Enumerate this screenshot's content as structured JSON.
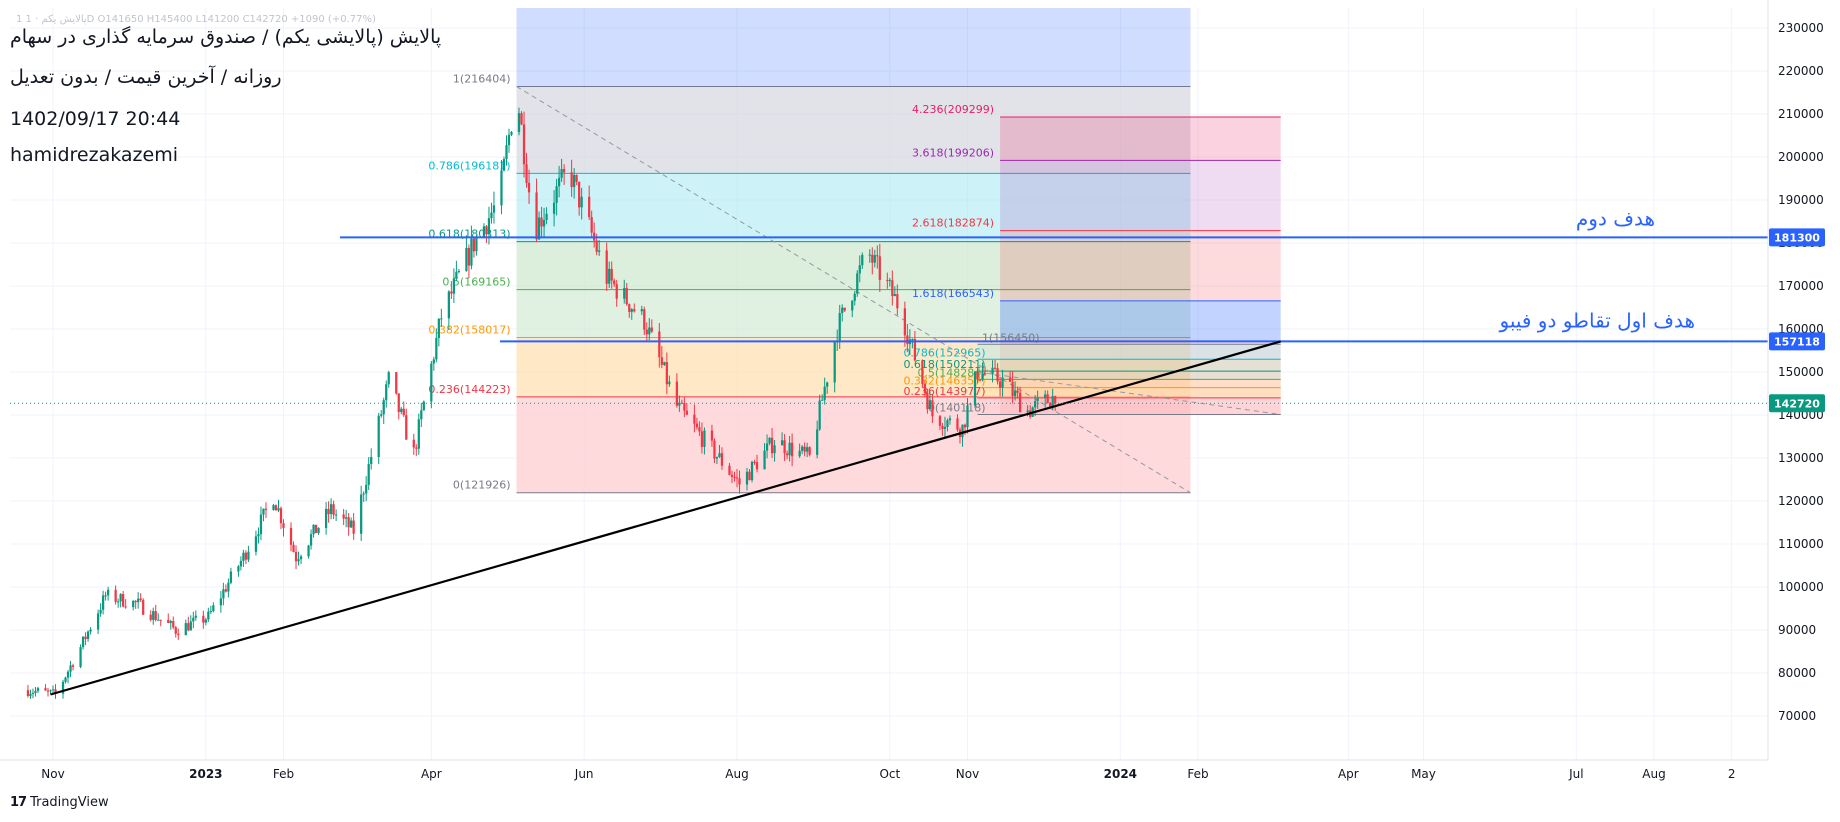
{
  "header": {
    "ohlc_text": "1 پالایش یکم · 1D  O141650  H145400  L141200  C142720  +1090 (+0.77%)",
    "title": "پالایش (پالایشی یکم) / صندوق سرمایه گذاری در سهام",
    "subtitle": "روزانه / آخرین قیمت / بدون تعدیل",
    "datetime": "1402/09/17 20:44",
    "author": "hamidrezakazemi"
  },
  "footer": {
    "logo": "17",
    "brand": "TradingView"
  },
  "colors": {
    "up": "#089981",
    "down": "#f23645",
    "accent": "#2962ff"
  },
  "chart_data": {
    "type": "candlestick",
    "x_labels": [
      "Nov",
      "2023",
      "Feb",
      "Apr",
      "Jun",
      "Aug",
      "Oct",
      "Nov",
      "2024",
      "Feb",
      "Apr",
      "May",
      "Jul",
      "Aug",
      "2"
    ],
    "y_ticks": [
      70000,
      80000,
      90000,
      100000,
      110000,
      120000,
      130000,
      140000,
      150000,
      160000,
      170000,
      180000,
      190000,
      200000,
      210000,
      220000,
      230000
    ],
    "ylim": [
      63000,
      234000
    ],
    "price_path": [
      [
        "2022-10-22",
        76000
      ],
      [
        "2022-11-02",
        75000
      ],
      [
        "2022-11-12",
        86000
      ],
      [
        "2022-11-22",
        98000
      ],
      [
        "2022-12-05",
        96000
      ],
      [
        "2022-12-20",
        90000
      ],
      [
        "2023-01-02",
        93000
      ],
      [
        "2023-01-16",
        107000
      ],
      [
        "2023-01-28",
        121000
      ],
      [
        "2023-02-06",
        107000
      ],
      [
        "2023-02-20",
        118000
      ],
      [
        "2023-03-01",
        113000
      ],
      [
        "2023-03-15",
        148000
      ],
      [
        "2023-03-25",
        131000
      ],
      [
        "2023-04-05",
        163000
      ],
      [
        "2023-04-18",
        180000
      ],
      [
        "2023-04-28",
        190000
      ],
      [
        "2023-05-05",
        216000
      ],
      [
        "2023-05-12",
        183000
      ],
      [
        "2023-05-26",
        197000
      ],
      [
        "2023-06-10",
        172000
      ],
      [
        "2023-06-25",
        162000
      ],
      [
        "2023-07-08",
        142000
      ],
      [
        "2023-07-22",
        132000
      ],
      [
        "2023-08-02",
        124000
      ],
      [
        "2023-08-16",
        134000
      ],
      [
        "2023-08-30",
        130000
      ],
      [
        "2023-09-10",
        160000
      ],
      [
        "2023-09-22",
        178000
      ],
      [
        "2023-10-05",
        165000
      ],
      [
        "2023-10-18",
        140000
      ],
      [
        "2023-10-30",
        137000
      ],
      [
        "2023-11-05",
        150000
      ],
      [
        "2023-11-15",
        148000
      ],
      [
        "2023-11-25",
        141000
      ],
      [
        "2023-12-05",
        144000
      ],
      [
        "2023-12-08",
        142720
      ]
    ],
    "last_price": "142720",
    "trend_line": {
      "from": [
        "2022-10-31",
        75000
      ],
      "to": [
        "2024-03-05",
        157118
      ]
    },
    "horizontal_lines": [
      {
        "price": 181300,
        "label": "181300",
        "annotation": "هدف دوم"
      },
      {
        "price": 157118,
        "label": "157118",
        "annotation": "هدف اول تقاطو دو فیبو"
      }
    ],
    "fib_retracement_1": {
      "levels": [
        {
          "ratio": "1",
          "price": 216404,
          "label": "1(216404)"
        },
        {
          "ratio": "0.786",
          "price": 196181,
          "label": "0.786(196181)"
        },
        {
          "ratio": "0.618",
          "price": 180313,
          "label": "0.618(180313)"
        },
        {
          "ratio": "0.5",
          "price": 169165,
          "label": "0.5(169165)"
        },
        {
          "ratio": "0.382",
          "price": 158017,
          "label": "0.382(158017)"
        },
        {
          "ratio": "0.236",
          "price": 144223,
          "label": "0.236(144223)"
        },
        {
          "ratio": "0",
          "price": 121926,
          "label": "0(121926)"
        }
      ]
    },
    "fib_extension": {
      "levels": [
        {
          "ratio": "4.236",
          "price": 209299,
          "label": "4.236(209299)"
        },
        {
          "ratio": "3.618",
          "price": 199206,
          "label": "3.618(199206)"
        },
        {
          "ratio": "2.618",
          "price": 182874,
          "label": "2.618(182874)"
        },
        {
          "ratio": "1.618",
          "price": 166543,
          "label": "1.618(166543)"
        }
      ]
    },
    "fib_retracement_2": {
      "levels": [
        {
          "ratio": "1",
          "price": 156450,
          "label": "1(156450)"
        },
        {
          "ratio": "0.786",
          "price": 152965,
          "label": "0.786(152965)"
        },
        {
          "ratio": "0.618",
          "price": 150211,
          "label": "0.618(150211)"
        },
        {
          "ratio": "0.5",
          "price": 148284,
          "label": "0.5(148284)"
        },
        {
          "ratio": "0.382",
          "price": 146357,
          "label": "0.382(146357)"
        },
        {
          "ratio": "0.236",
          "price": 143977,
          "label": "0.236(143977)"
        },
        {
          "ratio": "0",
          "price": 140118,
          "label": "0(140118)"
        }
      ]
    }
  }
}
